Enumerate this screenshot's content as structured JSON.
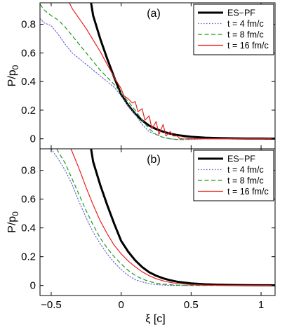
{
  "chart_data": [
    {
      "type": "line",
      "panel_label": "(a)",
      "xlabel": "",
      "ylabel": "P/p",
      "ylabel_sub": "0",
      "xlim": [
        -0.58,
        1.1
      ],
      "ylim": [
        -0.07,
        0.95
      ],
      "yticks": [
        0,
        0.2,
        0.4,
        0.6,
        0.8
      ],
      "ytick_labels": [
        "0",
        "0.2",
        "0.4",
        "0.6",
        "0.8"
      ],
      "xticks": [
        -0.5,
        0,
        0.5,
        1
      ],
      "xtick_labels": [],
      "legend": "top-right",
      "grid": false,
      "series": [
        {
          "name": "ES−PF",
          "color": "#000000",
          "style": "solid",
          "width": 3,
          "x": [
            -0.215,
            -0.2,
            -0.15,
            -0.1,
            -0.05,
            0,
            0.05,
            0.1,
            0.15,
            0.2,
            0.25,
            0.3,
            0.35,
            0.4,
            0.5,
            0.6,
            0.7,
            0.8,
            0.9,
            1.0,
            1.1
          ],
          "y": [
            0.95,
            0.86,
            0.7,
            0.56,
            0.43,
            0.31,
            0.235,
            0.175,
            0.128,
            0.092,
            0.068,
            0.05,
            0.036,
            0.026,
            0.014,
            0.008,
            0.005,
            0.003,
            0.002,
            0.0015,
            0.001
          ]
        },
        {
          "name": "t = 4 fm/c",
          "color": "#6a6ad8",
          "style": "dotted",
          "width": 1.2,
          "x": [
            -0.58,
            -0.55,
            -0.5,
            -0.45,
            -0.4,
            -0.35,
            -0.3,
            -0.25,
            -0.2,
            -0.15,
            -0.1,
            -0.05,
            0,
            0.05,
            0.1,
            0.15,
            0.2,
            0.25,
            0.3,
            0.35,
            0.4,
            0.5,
            0.6,
            0.8,
            1.0,
            1.1
          ],
          "y": [
            0.84,
            0.81,
            0.79,
            0.73,
            0.66,
            0.6,
            0.56,
            0.52,
            0.48,
            0.44,
            0.4,
            0.36,
            0.3,
            0.23,
            0.17,
            0.1,
            0.05,
            0.03,
            0.01,
            0.0,
            -0.005,
            -0.005,
            0.0,
            0.0,
            0.0,
            0.0
          ]
        },
        {
          "name": "t = 8 fm/c",
          "color": "#1a9a1a",
          "style": "dashed",
          "width": 1.2,
          "x": [
            -0.58,
            -0.55,
            -0.5,
            -0.45,
            -0.4,
            -0.35,
            -0.3,
            -0.25,
            -0.2,
            -0.15,
            -0.1,
            -0.05,
            0,
            0.05,
            0.1,
            0.15,
            0.2,
            0.25,
            0.3,
            0.35,
            0.4,
            0.45,
            0.5,
            0.6,
            0.8,
            1.0,
            1.1
          ],
          "y": [
            0.94,
            0.9,
            0.86,
            0.83,
            0.78,
            0.72,
            0.66,
            0.6,
            0.54,
            0.48,
            0.43,
            0.38,
            0.32,
            0.26,
            0.2,
            0.13,
            0.07,
            0.03,
            0.01,
            0.0,
            -0.005,
            -0.005,
            0.0,
            0.0,
            0.0,
            0.0,
            0.0
          ]
        },
        {
          "name": "t = 16 fm/c",
          "color": "#e8201f",
          "style": "solid",
          "width": 1.2,
          "x": [
            -0.37,
            -0.35,
            -0.3,
            -0.25,
            -0.2,
            -0.15,
            -0.1,
            -0.05,
            0,
            0.02,
            0.05,
            0.08,
            0.1,
            0.12,
            0.15,
            0.17,
            0.2,
            0.22,
            0.25,
            0.27,
            0.3,
            0.32,
            0.35,
            0.37,
            0.4,
            0.42,
            0.45,
            0.5,
            0.6,
            0.8,
            1.0,
            1.1
          ],
          "y": [
            0.95,
            0.91,
            0.84,
            0.77,
            0.69,
            0.61,
            0.52,
            0.43,
            0.35,
            0.3,
            0.28,
            0.25,
            0.26,
            0.19,
            0.21,
            0.13,
            0.16,
            0.07,
            0.12,
            0.03,
            0.1,
            0.02,
            0.05,
            0.02,
            0.02,
            0.0,
            0.005,
            0.0,
            0.0,
            0.0,
            0.0,
            0.0
          ]
        }
      ]
    },
    {
      "type": "line",
      "panel_label": "(b)",
      "xlabel": "ξ [c]",
      "ylabel": "P/p",
      "ylabel_sub": "0",
      "xlim": [
        -0.58,
        1.1
      ],
      "ylim": [
        -0.07,
        0.95
      ],
      "yticks": [
        0,
        0.2,
        0.4,
        0.6,
        0.8
      ],
      "ytick_labels": [
        "0",
        "0.2",
        "0.4",
        "0.6",
        "0.8"
      ],
      "xticks": [
        -0.5,
        0,
        0.5,
        1
      ],
      "xtick_labels": [
        "−0.5",
        "0",
        "0.5",
        "1"
      ],
      "legend": "top-right",
      "grid": false,
      "series": [
        {
          "name": "ES−PF",
          "color": "#000000",
          "style": "solid",
          "width": 3,
          "x": [
            -0.215,
            -0.2,
            -0.15,
            -0.1,
            -0.05,
            0,
            0.05,
            0.1,
            0.15,
            0.2,
            0.25,
            0.3,
            0.35,
            0.4,
            0.5,
            0.6,
            0.7,
            0.8,
            0.9,
            1.0,
            1.1
          ],
          "y": [
            0.95,
            0.86,
            0.7,
            0.56,
            0.43,
            0.31,
            0.235,
            0.175,
            0.128,
            0.092,
            0.068,
            0.05,
            0.036,
            0.026,
            0.014,
            0.008,
            0.005,
            0.003,
            0.002,
            0.0015,
            0.001
          ]
        },
        {
          "name": "t = 4 fm/c",
          "color": "#6a6ad8",
          "style": "dotted",
          "width": 1.2,
          "x": [
            -0.5,
            -0.45,
            -0.4,
            -0.35,
            -0.3,
            -0.25,
            -0.2,
            -0.15,
            -0.1,
            -0.05,
            0,
            0.05,
            0.1,
            0.15,
            0.2,
            0.25,
            0.3,
            0.35,
            0.4,
            0.5,
            0.6,
            0.8,
            1.0,
            1.1
          ],
          "y": [
            0.95,
            0.88,
            0.8,
            0.7,
            0.58,
            0.47,
            0.37,
            0.29,
            0.22,
            0.16,
            0.11,
            0.07,
            0.04,
            0.025,
            0.012,
            0.006,
            0.003,
            0.0,
            0.0,
            0.0,
            0.0,
            0.0,
            0.0,
            0.0
          ]
        },
        {
          "name": "t = 8 fm/c",
          "color": "#1a9a1a",
          "style": "dashed",
          "width": 1.2,
          "x": [
            -0.46,
            -0.45,
            -0.4,
            -0.35,
            -0.3,
            -0.25,
            -0.2,
            -0.15,
            -0.1,
            -0.05,
            0,
            0.05,
            0.1,
            0.15,
            0.2,
            0.25,
            0.3,
            0.35,
            0.4,
            0.5,
            0.6,
            0.8,
            1.0,
            1.1
          ],
          "y": [
            0.95,
            0.93,
            0.85,
            0.74,
            0.63,
            0.52,
            0.42,
            0.33,
            0.26,
            0.2,
            0.15,
            0.105,
            0.07,
            0.045,
            0.028,
            0.016,
            0.009,
            0.005,
            0.002,
            0.0,
            0.0,
            0.0,
            0.0,
            0.0
          ]
        },
        {
          "name": "t = 16 fm/c",
          "color": "#e8201f",
          "style": "solid",
          "width": 1.2,
          "x": [
            -0.36,
            -0.35,
            -0.3,
            -0.25,
            -0.2,
            -0.15,
            -0.1,
            -0.05,
            0,
            0.05,
            0.1,
            0.15,
            0.2,
            0.25,
            0.3,
            0.35,
            0.4,
            0.5,
            0.6,
            0.8,
            1.0,
            1.1
          ],
          "y": [
            0.95,
            0.93,
            0.81,
            0.68,
            0.56,
            0.45,
            0.36,
            0.28,
            0.22,
            0.17,
            0.13,
            0.095,
            0.068,
            0.047,
            0.032,
            0.021,
            0.014,
            0.006,
            0.002,
            0.0,
            0.0,
            0.0
          ]
        }
      ]
    }
  ]
}
